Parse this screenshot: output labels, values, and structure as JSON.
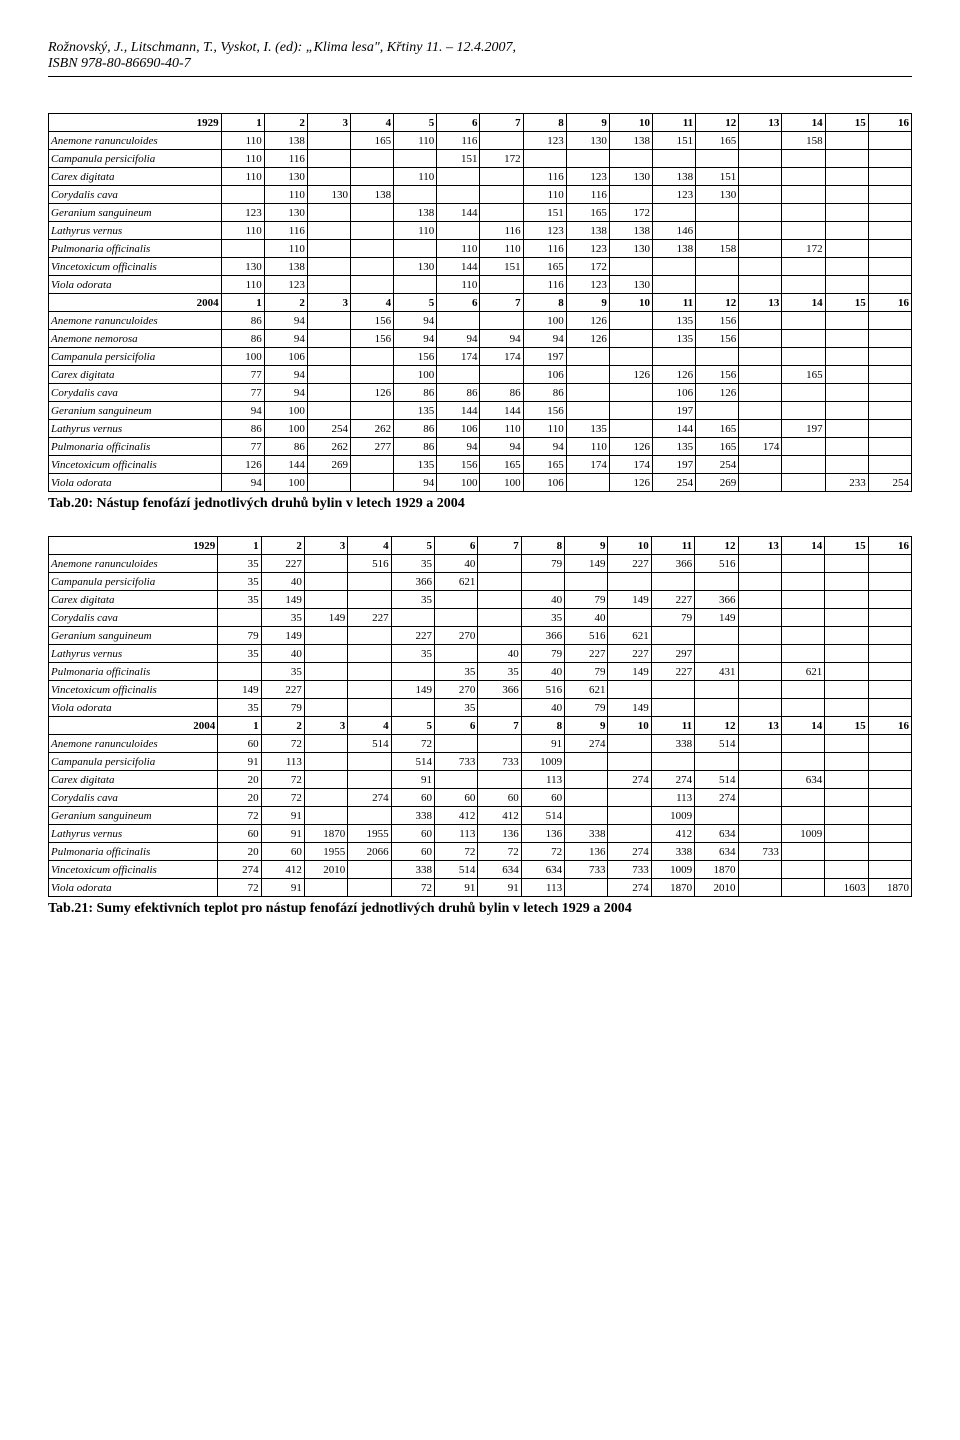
{
  "header": {
    "line1": "Rožnovský, J., Litschmann, T., Vyskot, I. (ed): „Klima lesa\", Křtiny 11. – 12.4.2007,",
    "line2": "ISBN 978-80-86690-40-7"
  },
  "table1": {
    "columns": [
      "1",
      "2",
      "3",
      "4",
      "5",
      "6",
      "7",
      "8",
      "9",
      "10",
      "11",
      "12",
      "13",
      "14",
      "15",
      "16"
    ],
    "year1929": "1929",
    "year2004": "2004",
    "rows1929": [
      {
        "label": "Anemone ranunculoides",
        "v": [
          "110",
          "138",
          "",
          "165",
          "110",
          "116",
          "",
          "123",
          "130",
          "138",
          "151",
          "165",
          "",
          "158",
          "",
          ""
        ]
      },
      {
        "label": "Campanula persicifolia",
        "v": [
          "110",
          "116",
          "",
          "",
          "",
          "151",
          "172",
          "",
          "",
          "",
          "",
          "",
          "",
          "",
          "",
          ""
        ]
      },
      {
        "label": "Carex digitata",
        "v": [
          "110",
          "130",
          "",
          "",
          "110",
          "",
          "",
          "116",
          "123",
          "130",
          "138",
          "151",
          "",
          "",
          "",
          ""
        ]
      },
      {
        "label": "Corydalis cava",
        "v": [
          "",
          "110",
          "130",
          "138",
          "",
          "",
          "",
          "110",
          "116",
          "",
          "123",
          "130",
          "",
          "",
          "",
          ""
        ]
      },
      {
        "label": "Geranium sanguineum",
        "v": [
          "123",
          "130",
          "",
          "",
          "138",
          "144",
          "",
          "151",
          "165",
          "172",
          "",
          "",
          "",
          "",
          "",
          ""
        ]
      },
      {
        "label": "Lathyrus vernus",
        "v": [
          "110",
          "116",
          "",
          "",
          "110",
          "",
          "116",
          "123",
          "138",
          "138",
          "146",
          "",
          "",
          "",
          "",
          ""
        ]
      },
      {
        "label": "Pulmonaria officinalis",
        "v": [
          "",
          "110",
          "",
          "",
          "",
          "110",
          "110",
          "116",
          "123",
          "130",
          "138",
          "158",
          "",
          "172",
          "",
          ""
        ]
      },
      {
        "label": "Vincetoxicum officinalis",
        "v": [
          "130",
          "138",
          "",
          "",
          "130",
          "144",
          "151",
          "165",
          "172",
          "",
          "",
          "",
          "",
          "",
          "",
          ""
        ]
      },
      {
        "label": "Viola odorata",
        "v": [
          "110",
          "123",
          "",
          "",
          "",
          "110",
          "",
          "116",
          "123",
          "130",
          "",
          "",
          "",
          "",
          "",
          ""
        ]
      }
    ],
    "rows2004": [
      {
        "label": "Anemone ranunculoides",
        "v": [
          "86",
          "94",
          "",
          "156",
          "94",
          "",
          "",
          "100",
          "126",
          "",
          "135",
          "156",
          "",
          "",
          "",
          ""
        ]
      },
      {
        "label": "Anemone nemorosa",
        "v": [
          "86",
          "94",
          "",
          "156",
          "94",
          "94",
          "94",
          "94",
          "126",
          "",
          "135",
          "156",
          "",
          "",
          "",
          ""
        ]
      },
      {
        "label": "Campanula persicifolia",
        "v": [
          "100",
          "106",
          "",
          "",
          "156",
          "174",
          "174",
          "197",
          "",
          "",
          "",
          "",
          "",
          "",
          "",
          ""
        ]
      },
      {
        "label": "Carex digitata",
        "v": [
          "77",
          "94",
          "",
          "",
          "100",
          "",
          "",
          "106",
          "",
          "126",
          "126",
          "156",
          "",
          "165",
          "",
          ""
        ]
      },
      {
        "label": "Corydalis cava",
        "v": [
          "77",
          "94",
          "",
          "126",
          "86",
          "86",
          "86",
          "86",
          "",
          "",
          "106",
          "126",
          "",
          "",
          "",
          ""
        ]
      },
      {
        "label": "Geranium sanguineum",
        "v": [
          "94",
          "100",
          "",
          "",
          "135",
          "144",
          "144",
          "156",
          "",
          "",
          "197",
          "",
          "",
          "",
          "",
          ""
        ]
      },
      {
        "label": "Lathyrus vernus",
        "v": [
          "86",
          "100",
          "254",
          "262",
          "86",
          "106",
          "110",
          "110",
          "135",
          "",
          "144",
          "165",
          "",
          "197",
          "",
          ""
        ]
      },
      {
        "label": "Pulmonaria officinalis",
        "v": [
          "77",
          "86",
          "262",
          "277",
          "86",
          "94",
          "94",
          "94",
          "110",
          "126",
          "135",
          "165",
          "174",
          "",
          "",
          ""
        ]
      },
      {
        "label": "Vincetoxicum officinalis",
        "v": [
          "126",
          "144",
          "269",
          "",
          "135",
          "156",
          "165",
          "165",
          "174",
          "174",
          "197",
          "254",
          "",
          "",
          "",
          ""
        ]
      },
      {
        "label": "Viola odorata",
        "v": [
          "94",
          "100",
          "",
          "",
          "94",
          "100",
          "100",
          "106",
          "",
          "126",
          "254",
          "269",
          "",
          "",
          "233",
          "254"
        ]
      }
    ]
  },
  "caption1": "Tab.20: Nástup fenofází jednotlivých druhů bylin v letech 1929 a 2004",
  "table2": {
    "columns": [
      "1",
      "2",
      "3",
      "4",
      "5",
      "6",
      "7",
      "8",
      "9",
      "10",
      "11",
      "12",
      "13",
      "14",
      "15",
      "16"
    ],
    "year1929": "1929",
    "year2004": "2004",
    "rows1929": [
      {
        "label": "Anemone ranunculoides",
        "v": [
          "35",
          "227",
          "",
          "516",
          "35",
          "40",
          "",
          "79",
          "149",
          "227",
          "366",
          "516",
          "",
          "",
          "",
          ""
        ]
      },
      {
        "label": "Campanula persicifolia",
        "v": [
          "35",
          "40",
          "",
          "",
          "366",
          "621",
          "",
          "",
          "",
          "",
          "",
          "",
          "",
          "",
          "",
          ""
        ]
      },
      {
        "label": "Carex digitata",
        "v": [
          "35",
          "149",
          "",
          "",
          "35",
          "",
          "",
          "40",
          "79",
          "149",
          "227",
          "366",
          "",
          "",
          "",
          ""
        ]
      },
      {
        "label": "Corydalis cava",
        "v": [
          "",
          "35",
          "149",
          "227",
          "",
          "",
          "",
          "35",
          "40",
          "",
          "79",
          "149",
          "",
          "",
          "",
          ""
        ]
      },
      {
        "label": "Geranium sanguineum",
        "v": [
          "79",
          "149",
          "",
          "",
          "227",
          "270",
          "",
          "366",
          "516",
          "621",
          "",
          "",
          "",
          "",
          "",
          ""
        ]
      },
      {
        "label": "Lathyrus vernus",
        "v": [
          "35",
          "40",
          "",
          "",
          "35",
          "",
          "40",
          "79",
          "227",
          "227",
          "297",
          "",
          "",
          "",
          "",
          ""
        ]
      },
      {
        "label": "Pulmonaria officinalis",
        "v": [
          "",
          "35",
          "",
          "",
          "",
          "35",
          "35",
          "40",
          "79",
          "149",
          "227",
          "431",
          "",
          "621",
          "",
          ""
        ]
      },
      {
        "label": "Vincetoxicum officinalis",
        "v": [
          "149",
          "227",
          "",
          "",
          "149",
          "270",
          "366",
          "516",
          "621",
          "",
          "",
          "",
          "",
          "",
          "",
          ""
        ]
      },
      {
        "label": "Viola odorata",
        "v": [
          "35",
          "79",
          "",
          "",
          "",
          "35",
          "",
          "40",
          "79",
          "149",
          "",
          "",
          "",
          "",
          "",
          ""
        ]
      }
    ],
    "rows2004": [
      {
        "label": "Anemone ranunculoides",
        "v": [
          "60",
          "72",
          "",
          "514",
          "72",
          "",
          "",
          "91",
          "274",
          "",
          "338",
          "514",
          "",
          "",
          "",
          ""
        ]
      },
      {
        "label": "Campanula persicifolia",
        "v": [
          "91",
          "113",
          "",
          "",
          "514",
          "733",
          "733",
          "1009",
          "",
          "",
          "",
          "",
          "",
          "",
          "",
          ""
        ]
      },
      {
        "label": "Carex digitata",
        "v": [
          "20",
          "72",
          "",
          "",
          "91",
          "",
          "",
          "113",
          "",
          "274",
          "274",
          "514",
          "",
          "634",
          "",
          ""
        ]
      },
      {
        "label": "Corydalis cava",
        "v": [
          "20",
          "72",
          "",
          "274",
          "60",
          "60",
          "60",
          "60",
          "",
          "",
          "113",
          "274",
          "",
          "",
          "",
          ""
        ]
      },
      {
        "label": "Geranium sanguineum",
        "v": [
          "72",
          "91",
          "",
          "",
          "338",
          "412",
          "412",
          "514",
          "",
          "",
          "1009",
          "",
          "",
          "",
          "",
          ""
        ]
      },
      {
        "label": "Lathyrus vernus",
        "v": [
          "60",
          "91",
          "1870",
          "1955",
          "60",
          "113",
          "136",
          "136",
          "338",
          "",
          "412",
          "634",
          "",
          "1009",
          "",
          ""
        ]
      },
      {
        "label": "Pulmonaria officinalis",
        "v": [
          "20",
          "60",
          "1955",
          "2066",
          "60",
          "72",
          "72",
          "72",
          "136",
          "274",
          "338",
          "634",
          "733",
          "",
          "",
          ""
        ]
      },
      {
        "label": "Vincetoxicum officinalis",
        "v": [
          "274",
          "412",
          "2010",
          "",
          "338",
          "514",
          "634",
          "634",
          "733",
          "733",
          "1009",
          "1870",
          "",
          "",
          "",
          ""
        ]
      },
      {
        "label": "Viola odorata",
        "v": [
          "72",
          "91",
          "",
          "",
          "72",
          "91",
          "91",
          "113",
          "",
          "274",
          "1870",
          "2010",
          "",
          "",
          "1603",
          "1870"
        ]
      }
    ]
  },
  "caption2": "Tab.21: Sumy efektivních teplot pro nástup fenofází jednotlivých druhů bylin v letech 1929 a 2004"
}
